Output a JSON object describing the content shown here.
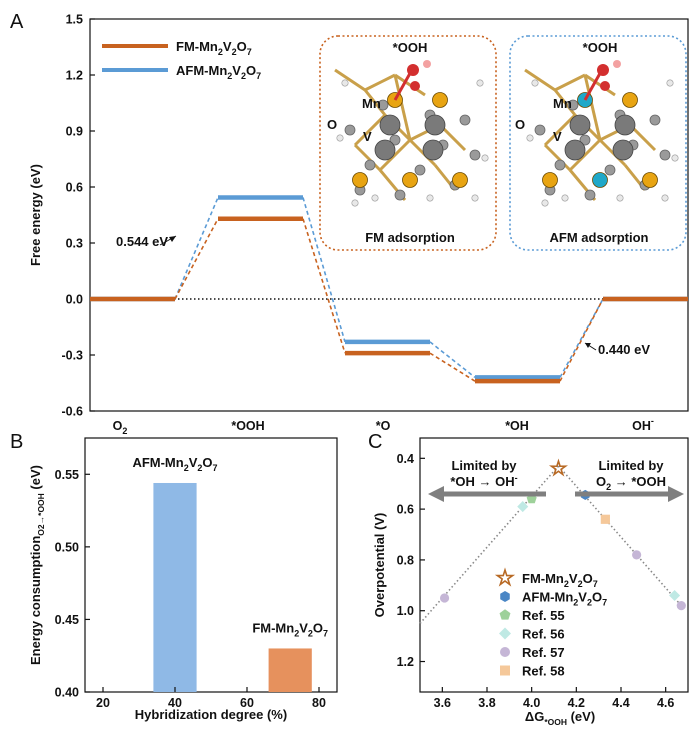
{
  "chart_data": [
    {
      "panel": "A",
      "type": "line",
      "title": "",
      "ylabel": "Free energy (eV)",
      "ylim": [
        -0.6,
        1.5
      ],
      "yticks": [
        -0.6,
        -0.3,
        0.0,
        0.3,
        0.6,
        0.9,
        1.2,
        1.5
      ],
      "ytick_labels": [
        "-0.6",
        "-0.3",
        "0.0",
        "0.3",
        "0.6",
        "0.9",
        "1.2",
        "1.5"
      ],
      "categories": [
        "O2",
        "*OOH",
        "*O",
        "*OH",
        "OH-"
      ],
      "category_labels": [
        {
          "main": "O",
          "sub": "2",
          "sup": ""
        },
        {
          "main": "*OOH",
          "sub": "",
          "sup": ""
        },
        {
          "main": "*O",
          "sub": "",
          "sup": ""
        },
        {
          "main": "*OH",
          "sub": "",
          "sup": ""
        },
        {
          "main": "OH",
          "sub": "",
          "sup": "-"
        }
      ],
      "series": [
        {
          "name": "FM-Mn2V2O7",
          "color": "#c8621f",
          "values": [
            0.0,
            0.43,
            -0.29,
            -0.44,
            0.0
          ]
        },
        {
          "name": "AFM-Mn2V2O7",
          "color": "#5b9bd5",
          "values": [
            0.0,
            0.544,
            -0.23,
            -0.42,
            0.0
          ]
        }
      ],
      "legend": [
        {
          "parts": [
            "FM-Mn",
            "2",
            "V",
            "2",
            "O",
            "7"
          ],
          "color": "#c8621f"
        },
        {
          "parts": [
            "AFM-Mn",
            "2",
            "V",
            "2",
            "O",
            "7"
          ],
          "color": "#5b9bd5"
        }
      ],
      "annotations": [
        {
          "text": "0.544 eV",
          "target": "AFM *OOH rise"
        },
        {
          "text": "0.440 eV",
          "target": "FM OH- rise"
        }
      ],
      "insets": [
        {
          "title": "FM adsorption",
          "adsorbate": "*OOH",
          "labels": [
            "Mn",
            "O",
            "V"
          ],
          "border": "#c8621f",
          "metal_colors": [
            "#e8a412",
            "#e8a412",
            "#e8a412",
            "#e8a412",
            "#e8a412"
          ]
        },
        {
          "title": "AFM adsorption",
          "adsorbate": "*OOH",
          "labels": [
            "Mn",
            "O",
            "V"
          ],
          "border": "#5b9bd5",
          "metal_colors": [
            "#1fa8c9",
            "#e8a412",
            "#e8a412",
            "#1fa8c9",
            "#e8a412"
          ]
        }
      ]
    },
    {
      "panel": "B",
      "type": "bar",
      "ylabel_parts": [
        "Energy consumption",
        "O2→*OOH",
        " (eV)"
      ],
      "xlabel": "Hybridization degree (%)",
      "xlim": [
        15,
        85
      ],
      "ylim": [
        0.4,
        0.575
      ],
      "xticks": [
        20,
        40,
        60,
        80
      ],
      "yticks": [
        0.4,
        0.45,
        0.5,
        0.55
      ],
      "ytick_labels": [
        "0.40",
        "0.45",
        "0.50",
        "0.55"
      ],
      "bars": [
        {
          "x": 40,
          "value": 0.544,
          "color": "#8fb9e6",
          "label_parts": [
            "AFM-Mn",
            "2",
            "V",
            "2",
            "O",
            "7"
          ]
        },
        {
          "x": 72,
          "value": 0.43,
          "color": "#e6915d",
          "label_parts": [
            "FM-Mn",
            "2",
            "V",
            "2",
            "O",
            "7"
          ]
        }
      ],
      "bar_width": 12
    },
    {
      "panel": "C",
      "type": "scatter",
      "ylabel": "Overpotential (V)",
      "xlabel_parts": [
        "ΔG",
        "*OOH",
        " (eV)"
      ],
      "xlim": [
        3.5,
        4.7
      ],
      "ylim": [
        1.32,
        0.32
      ],
      "xticks": [
        3.6,
        3.8,
        4.0,
        4.2,
        4.4,
        4.6
      ],
      "xtick_labels": [
        "3.6",
        "3.8",
        "4.0",
        "4.2",
        "4.4",
        "4.6"
      ],
      "yticks": [
        0.4,
        0.6,
        0.8,
        1.0,
        1.2
      ],
      "ytick_labels": [
        "0.4",
        "0.6",
        "0.8",
        "1.0",
        "1.2"
      ],
      "volcano": {
        "left": [
          [
            3.5,
            1.05
          ],
          [
            4.12,
            0.43
          ]
        ],
        "right": [
          [
            4.12,
            0.43
          ],
          [
            4.68,
            0.99
          ]
        ]
      },
      "arrows": [
        {
          "text1": "Limited by",
          "text2_parts": [
            "*OH → OH",
            "-",
            ""
          ],
          "direction": "left"
        },
        {
          "text1": "Limited by",
          "text2_parts": [
            "O",
            "2",
            " → *OOH"
          ],
          "direction": "right"
        }
      ],
      "series": [
        {
          "name": "FM-Mn2V2O7",
          "marker": "star",
          "color": "#b86a25",
          "label_parts": [
            "FM-Mn",
            "2",
            "V",
            "2",
            "O",
            "7"
          ],
          "points": [
            [
              4.12,
              0.44
            ]
          ]
        },
        {
          "name": "AFM-Mn2V2O7",
          "marker": "hexagon",
          "color": "#4a86c5",
          "label_parts": [
            "AFM-Mn",
            "2",
            "V",
            "2",
            "O",
            "7"
          ],
          "points": [
            [
              4.24,
              0.544
            ]
          ]
        },
        {
          "name": "Ref. 55",
          "marker": "pentagon",
          "color": "#9ed19a",
          "label_parts": [
            "Ref. 55"
          ],
          "points": [
            [
              4.0,
              0.56
            ]
          ]
        },
        {
          "name": "Ref. 56",
          "marker": "diamond",
          "color": "#bfe9e4",
          "label_parts": [
            "Ref. 56"
          ],
          "points": [
            [
              3.96,
              0.59
            ],
            [
              4.64,
              0.94
            ]
          ]
        },
        {
          "name": "Ref. 57",
          "marker": "circle",
          "color": "#c5b6d6",
          "label_parts": [
            "Ref. 57"
          ],
          "points": [
            [
              3.61,
              0.95
            ],
            [
              4.47,
              0.78
            ],
            [
              4.67,
              0.98
            ]
          ]
        },
        {
          "name": "Ref. 58",
          "marker": "square",
          "color": "#f5c89a",
          "label_parts": [
            "Ref. 58"
          ],
          "points": [
            [
              4.33,
              0.64
            ]
          ]
        }
      ]
    }
  ],
  "panel_labels": [
    "A",
    "B",
    "C"
  ]
}
